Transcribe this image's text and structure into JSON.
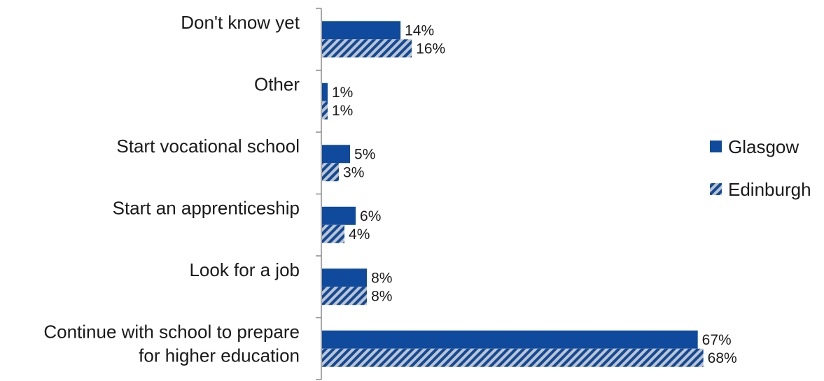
{
  "chart_data": {
    "type": "bar",
    "orientation": "horizontal",
    "categories": [
      "Don't know yet",
      "Other",
      "Start vocational school",
      "Start an apprenticeship",
      "Look for a job",
      "Continue with school to prepare for higher education"
    ],
    "category_lines": [
      [
        "Don't know yet"
      ],
      [
        "Other"
      ],
      [
        "Start vocational school"
      ],
      [
        "Start an apprenticeship"
      ],
      [
        "Look for a job"
      ],
      [
        "Continue with school to prepare",
        "for higher education"
      ]
    ],
    "series": [
      {
        "name": "Glasgow",
        "values": [
          14,
          1,
          5,
          6,
          8,
          67
        ],
        "labels": [
          "14%",
          "1%",
          "5%",
          "6%",
          "8%",
          "67%"
        ],
        "color": "#0f4a9c",
        "pattern": "solid"
      },
      {
        "name": "Edinburgh",
        "values": [
          16,
          1,
          3,
          4,
          8,
          68
        ],
        "labels": [
          "16%",
          "1%",
          "3%",
          "4%",
          "8%",
          "68%"
        ],
        "color": "#0f4a9c",
        "pattern": "hatched"
      }
    ],
    "xlim": [
      0,
      70
    ],
    "legend_position": "right",
    "grid": false,
    "title": "",
    "xlabel": "",
    "ylabel": ""
  },
  "colors": {
    "bar": "#0f4a9c",
    "hatch_background": "#bfc4cc",
    "axis": "#8c8c8c"
  }
}
